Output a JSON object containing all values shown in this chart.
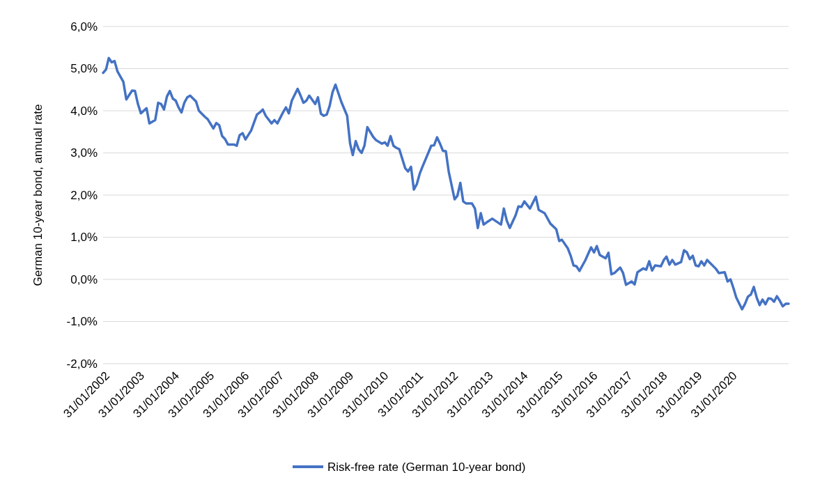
{
  "chart_data": {
    "type": "line",
    "ylabel": "German 10-year bond, annual rate",
    "grid": "y",
    "legend": "bottom",
    "marker": "none",
    "line_style": "solid",
    "xlim": [
      "2002-01",
      "2021-09"
    ],
    "xticks": [
      {
        "value": "2002-01",
        "label": "31/01/2002"
      },
      {
        "value": "2003-01",
        "label": "31/01/2003"
      },
      {
        "value": "2004-01",
        "label": "31/01/2004"
      },
      {
        "value": "2005-01",
        "label": "31/01/2005"
      },
      {
        "value": "2006-01",
        "label": "31/01/2006"
      },
      {
        "value": "2007-01",
        "label": "31/01/2007"
      },
      {
        "value": "2008-01",
        "label": "31/01/2008"
      },
      {
        "value": "2009-01",
        "label": "31/01/2009"
      },
      {
        "value": "2010-01",
        "label": "31/01/2010"
      },
      {
        "value": "2011-01",
        "label": "31/01/2011"
      },
      {
        "value": "2012-01",
        "label": "31/01/2012"
      },
      {
        "value": "2013-01",
        "label": "31/01/2013"
      },
      {
        "value": "2014-01",
        "label": "31/01/2014"
      },
      {
        "value": "2015-01",
        "label": "31/01/2015"
      },
      {
        "value": "2016-01",
        "label": "31/01/2016"
      },
      {
        "value": "2017-01",
        "label": "31/01/2017"
      },
      {
        "value": "2018-01",
        "label": "31/01/2018"
      },
      {
        "value": "2019-01",
        "label": "31/01/2019"
      },
      {
        "value": "2020-01",
        "label": "31/01/2020"
      }
    ],
    "ylim": [
      -2,
      6
    ],
    "yticks": [
      {
        "value": -2,
        "label": "-2,0%"
      },
      {
        "value": -1,
        "label": "-1,0%"
      },
      {
        "value": 0,
        "label": "0,0%"
      },
      {
        "value": 1,
        "label": "1,0%"
      },
      {
        "value": 2,
        "label": "2,0%"
      },
      {
        "value": 3,
        "label": "3,0%"
      },
      {
        "value": 4,
        "label": "4,0%"
      },
      {
        "value": 5,
        "label": "5,0%"
      },
      {
        "value": 6,
        "label": "6,0%"
      }
    ],
    "x": [
      "2002-01",
      "2002-02",
      "2002-03",
      "2002-04",
      "2002-05",
      "2002-06",
      "2002-08",
      "2002-09",
      "2002-11",
      "2002-12",
      "2003-01",
      "2003-02",
      "2003-04",
      "2003-05",
      "2003-07",
      "2003-08",
      "2003-09",
      "2003-10",
      "2003-11",
      "2003-12",
      "2004-01",
      "2004-02",
      "2004-03",
      "2004-04",
      "2004-05",
      "2004-06",
      "2004-07",
      "2004-09",
      "2004-10",
      "2004-12",
      "2005-01",
      "2005-03",
      "2005-04",
      "2005-05",
      "2005-06",
      "2005-07",
      "2005-08",
      "2005-10",
      "2005-11",
      "2005-12",
      "2006-01",
      "2006-02",
      "2006-04",
      "2006-06",
      "2006-07",
      "2006-08",
      "2006-09",
      "2006-11",
      "2006-12",
      "2007-01",
      "2007-03",
      "2007-04",
      "2007-05",
      "2007-06",
      "2007-08",
      "2007-09",
      "2007-10",
      "2007-11",
      "2007-12",
      "2008-02",
      "2008-03",
      "2008-04",
      "2008-05",
      "2008-06",
      "2008-07",
      "2008-08",
      "2008-09",
      "2008-11",
      "2009-01",
      "2009-02",
      "2009-03",
      "2009-04",
      "2009-05",
      "2009-06",
      "2009-07",
      "2009-08",
      "2009-10",
      "2009-11",
      "2010-01",
      "2010-02",
      "2010-03",
      "2010-04",
      "2010-05",
      "2010-06",
      "2010-07",
      "2010-09",
      "2010-10",
      "2010-11",
      "2010-12",
      "2011-01",
      "2011-02",
      "2011-03",
      "2011-05",
      "2011-06",
      "2011-07",
      "2011-08",
      "2011-09",
      "2011-10",
      "2011-11",
      "2011-12",
      "2012-02",
      "2012-03",
      "2012-04",
      "2012-05",
      "2012-06",
      "2012-08",
      "2012-09",
      "2012-10",
      "2012-11",
      "2012-12",
      "2013-01",
      "2013-03",
      "2013-06",
      "2013-07",
      "2013-08",
      "2013-09",
      "2013-11",
      "2013-12",
      "2014-01",
      "2014-02",
      "2014-04",
      "2014-05",
      "2014-06",
      "2014-07",
      "2014-09",
      "2014-11",
      "2015-01",
      "2015-02",
      "2015-03",
      "2015-05",
      "2015-06",
      "2015-07",
      "2015-08",
      "2015-09",
      "2015-11",
      "2016-01",
      "2016-02",
      "2016-03",
      "2016-04",
      "2016-06",
      "2016-07",
      "2016-08",
      "2016-09",
      "2016-11",
      "2016-12",
      "2017-01",
      "2017-03",
      "2017-04",
      "2017-05",
      "2017-07",
      "2017-08",
      "2017-09",
      "2017-10",
      "2017-11",
      "2018-01",
      "2018-02",
      "2018-03",
      "2018-04",
      "2018-05",
      "2018-06",
      "2018-08",
      "2018-09",
      "2018-10",
      "2018-11",
      "2018-12",
      "2019-01",
      "2019-02",
      "2019-03",
      "2019-04",
      "2019-05",
      "2019-08",
      "2019-09",
      "2019-11",
      "2019-12",
      "2020-01",
      "2020-02",
      "2020-03",
      "2020-05",
      "2020-06",
      "2020-07",
      "2020-08",
      "2020-09",
      "2020-10",
      "2020-11",
      "2020-12",
      "2021-01",
      "2021-02",
      "2021-03",
      "2021-04",
      "2021-05",
      "2021-06",
      "2021-07",
      "2021-08",
      "2021-09"
    ],
    "series": [
      {
        "name": "Risk-free rate (German 10-year bond)",
        "color": "#4472c4",
        "values": [
          4.9,
          4.98,
          5.25,
          5.15,
          5.18,
          4.93,
          4.69,
          4.27,
          4.48,
          4.47,
          4.16,
          3.94,
          4.06,
          3.7,
          3.78,
          4.19,
          4.16,
          4.03,
          4.34,
          4.47,
          4.29,
          4.24,
          4.08,
          3.96,
          4.19,
          4.32,
          4.36,
          4.22,
          4.0,
          3.86,
          3.8,
          3.58,
          3.71,
          3.66,
          3.4,
          3.33,
          3.2,
          3.2,
          3.17,
          3.42,
          3.47,
          3.32,
          3.53,
          3.91,
          3.96,
          4.03,
          3.88,
          3.7,
          3.78,
          3.7,
          3.96,
          4.08,
          3.94,
          4.24,
          4.52,
          4.36,
          4.19,
          4.24,
          4.36,
          4.16,
          4.32,
          3.93,
          3.88,
          3.91,
          4.11,
          4.44,
          4.62,
          4.21,
          3.88,
          3.22,
          2.95,
          3.28,
          3.09,
          3.0,
          3.17,
          3.61,
          3.38,
          3.3,
          3.22,
          3.25,
          3.17,
          3.4,
          3.17,
          3.12,
          3.09,
          2.64,
          2.56,
          2.67,
          2.13,
          2.26,
          2.51,
          2.67,
          3.0,
          3.17,
          3.18,
          3.37,
          3.22,
          3.05,
          3.04,
          2.56,
          1.9,
          1.98,
          2.29,
          1.85,
          1.8,
          1.8,
          1.68,
          1.22,
          1.57,
          1.3,
          1.35,
          1.44,
          1.3,
          1.68,
          1.39,
          1.22,
          1.52,
          1.73,
          1.72,
          1.85,
          1.68,
          1.82,
          1.96,
          1.65,
          1.57,
          1.32,
          1.19,
          0.91,
          0.94,
          0.74,
          0.56,
          0.33,
          0.31,
          0.2,
          0.45,
          0.76,
          0.64,
          0.79,
          0.58,
          0.5,
          0.63,
          0.12,
          0.15,
          0.28,
          0.15,
          -0.13,
          -0.05,
          -0.12,
          0.17,
          0.26,
          0.23,
          0.43,
          0.21,
          0.33,
          0.31,
          0.46,
          0.54,
          0.35,
          0.46,
          0.35,
          0.41,
          0.69,
          0.64,
          0.48,
          0.56,
          0.33,
          0.31,
          0.43,
          0.33,
          0.46,
          0.25,
          0.15,
          0.17,
          -0.05,
          0.0,
          -0.21,
          -0.43,
          -0.71,
          -0.58,
          -0.41,
          -0.36,
          -0.18,
          -0.43,
          -0.61,
          -0.48,
          -0.59,
          -0.45,
          -0.46,
          -0.53,
          -0.4,
          -0.51,
          -0.64,
          -0.58,
          -0.58
        ]
      }
    ]
  }
}
